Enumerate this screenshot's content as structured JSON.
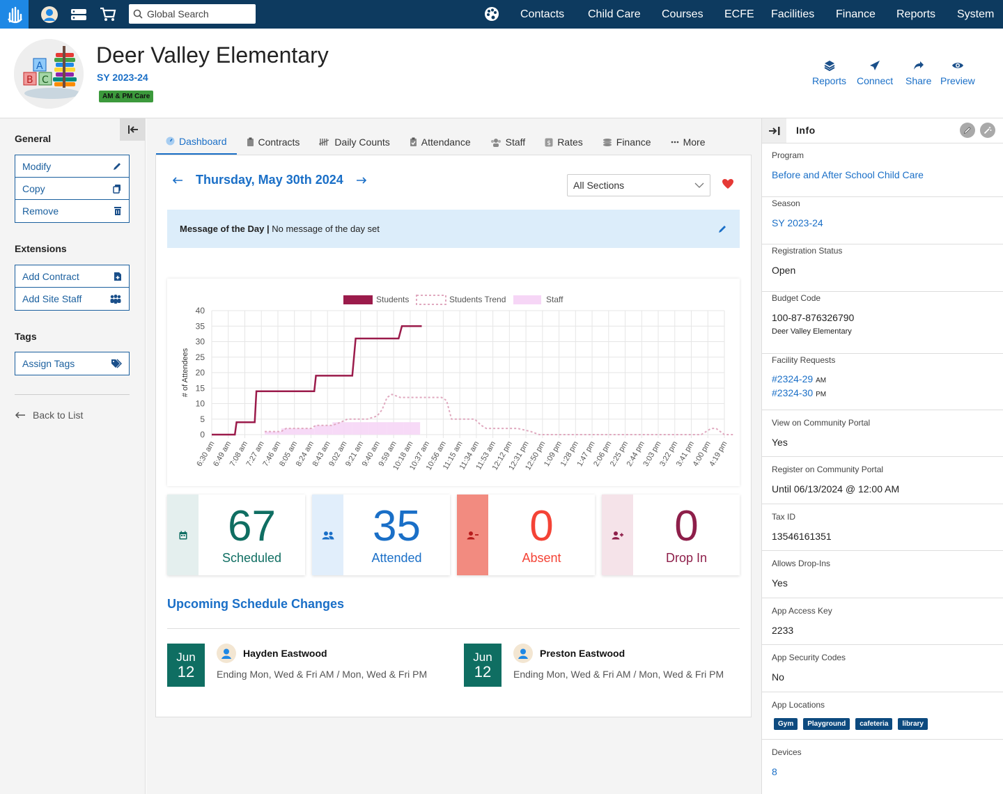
{
  "topbar": {
    "search_placeholder": "Global Search",
    "nav": [
      "Contacts",
      "Child Care",
      "Courses",
      "ECFE",
      "Facilities",
      "Finance",
      "Reports",
      "System"
    ]
  },
  "header": {
    "school_name": "Deer Valley Elementary",
    "season": "SY 2023-24",
    "badge": "AM & PM Care",
    "actions": [
      "Reports",
      "Connect",
      "Share",
      "Preview"
    ]
  },
  "sidebar": {
    "general_heading": "General",
    "general_buttons": [
      "Modify",
      "Copy",
      "Remove"
    ],
    "extensions_heading": "Extensions",
    "extension_buttons": [
      "Add Contract",
      "Add Site Staff"
    ],
    "tags_heading": "Tags",
    "tag_buttons": [
      "Assign Tags"
    ],
    "back_label": "Back to List"
  },
  "tabs": [
    "Dashboard",
    "Contracts",
    "Daily Counts",
    "Attendance",
    "Staff",
    "Rates",
    "Finance",
    "More"
  ],
  "dashboard": {
    "date": "Thursday, May 30th 2024",
    "section_select": "All Sections",
    "motd_label": "Message of the Day |",
    "motd_text": "No message of the day set"
  },
  "colors": {
    "students": "#9b1b4b",
    "students_trend": "#e0a9bf",
    "staff": "#f6d6f6",
    "scheduled": "#0f6e62",
    "attended": "#1a6fc7",
    "absent": "#f44336",
    "drop_in": "#8e1f4a"
  },
  "chart_data": {
    "type": "line",
    "ylabel": "# of Attendees",
    "ylim": [
      0,
      40
    ],
    "yticks": [
      0,
      5,
      10,
      15,
      20,
      25,
      30,
      35,
      40
    ],
    "xticks": [
      "6:30 am",
      "6:49 am",
      "7:08 am",
      "7:27 am",
      "7:46 am",
      "8:05 am",
      "8:24 am",
      "8:43 am",
      "9:02 am",
      "9:21 am",
      "9:40 am",
      "9:59 am",
      "10:18 am",
      "10:37 am",
      "10:56 am",
      "11:15 am",
      "11:34 am",
      "11:53 am",
      "12:12 pm",
      "12:31 pm",
      "12:50 pm",
      "1:09 pm",
      "1:28 pm",
      "1:47 pm",
      "2:06 pm",
      "2:25 pm",
      "2:44 pm",
      "3:03 pm",
      "3:22 pm",
      "3:41 pm",
      "4:00 pm",
      "4:19 pm"
    ],
    "legend": [
      "Students",
      "Students Trend",
      "Staff"
    ],
    "series": [
      {
        "name": "Students",
        "style": "step",
        "points": [
          [
            0,
            0
          ],
          [
            1.4,
            0
          ],
          [
            1.5,
            4
          ],
          [
            2.6,
            4
          ],
          [
            2.7,
            14
          ],
          [
            6.2,
            14
          ],
          [
            6.3,
            19
          ],
          [
            8.5,
            19
          ],
          [
            8.7,
            31
          ],
          [
            11.3,
            31
          ],
          [
            11.5,
            35
          ],
          [
            12.7,
            35
          ]
        ]
      },
      {
        "name": "Students Trend",
        "style": "dashed",
        "points": [
          [
            3.2,
            1
          ],
          [
            4.2,
            1
          ],
          [
            4.5,
            2
          ],
          [
            6,
            2
          ],
          [
            6.3,
            3
          ],
          [
            7.3,
            3
          ],
          [
            7.8,
            4
          ],
          [
            8.2,
            5
          ],
          [
            9.4,
            5
          ],
          [
            10,
            6
          ],
          [
            10.3,
            8
          ],
          [
            10.6,
            12
          ],
          [
            10.9,
            13
          ],
          [
            11.4,
            12
          ],
          [
            13.9,
            12
          ],
          [
            14.2,
            11
          ],
          [
            14.5,
            5
          ],
          [
            15.9,
            5
          ],
          [
            16.3,
            3
          ],
          [
            16.6,
            2
          ],
          [
            18.5,
            2
          ],
          [
            19.3,
            1
          ],
          [
            19.8,
            0
          ],
          [
            29.6,
            0
          ],
          [
            30.2,
            2
          ],
          [
            30.5,
            2
          ],
          [
            31,
            0
          ],
          [
            31.6,
            0
          ]
        ]
      },
      {
        "name": "Staff",
        "style": "bar",
        "points": [
          [
            3.2,
            1
          ],
          [
            4.2,
            2
          ],
          [
            5.2,
            2
          ],
          [
            6.2,
            3
          ],
          [
            7.3,
            4
          ],
          [
            8.5,
            4
          ],
          [
            9.5,
            4
          ],
          [
            10.6,
            4
          ],
          [
            11.6,
            4
          ],
          [
            12.6,
            4
          ]
        ]
      }
    ]
  },
  "stats": [
    {
      "value": "67",
      "label": "Scheduled"
    },
    {
      "value": "35",
      "label": "Attended"
    },
    {
      "value": "0",
      "label": "Absent"
    },
    {
      "value": "0",
      "label": "Drop In"
    }
  ],
  "upcoming": {
    "title": "Upcoming Schedule Changes",
    "items": [
      {
        "month": "Jun",
        "day": "12",
        "name": "Hayden Eastwood",
        "desc": "Ending Mon, Wed & Fri AM / Mon, Wed & Fri PM"
      },
      {
        "month": "Jun",
        "day": "12",
        "name": "Preston Eastwood",
        "desc": "Ending Mon, Wed & Fri AM / Mon, Wed & Fri PM"
      }
    ]
  },
  "info": {
    "title": "Info",
    "program_label": "Program",
    "program": "Before and After School Child Care",
    "season_label": "Season",
    "season": "SY 2023-24",
    "reg_status_label": "Registration Status",
    "reg_status": "Open",
    "budget_label": "Budget Code",
    "budget_code": "100-87-876326790",
    "budget_sub": "Deer Valley Elementary",
    "facility_label": "Facility Requests",
    "facility_1": "#2324-29",
    "facility_1_sfx": "AM",
    "facility_2": "#2324-30",
    "facility_2_sfx": "PM",
    "view_portal_label": "View on Community Portal",
    "view_portal": "Yes",
    "reg_portal_label": "Register on Community Portal",
    "reg_portal": "Until 06/13/2024 @ 12:00 AM",
    "tax_label": "Tax ID",
    "tax_id": "13546161351",
    "dropins_label": "Allows Drop-Ins",
    "dropins": "Yes",
    "app_key_label": "App Access Key",
    "app_key": "2233",
    "app_sec_label": "App Security Codes",
    "app_sec": "No",
    "app_loc_label": "App Locations",
    "app_locations": [
      "Gym",
      "Playground",
      "cafeteria",
      "library"
    ],
    "devices_label": "Devices",
    "devices": "8"
  }
}
